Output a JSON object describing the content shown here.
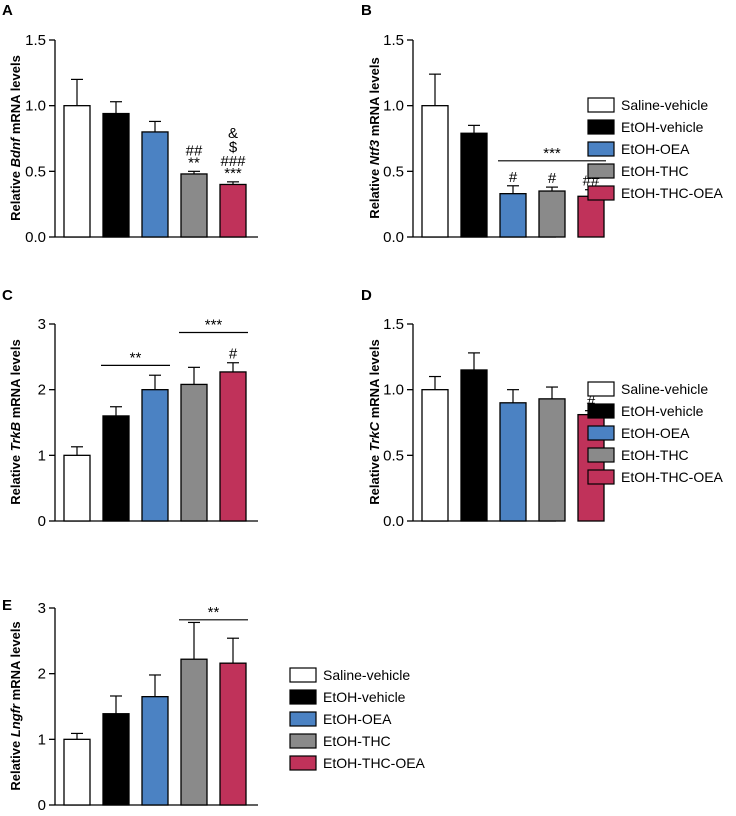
{
  "colors": {
    "Saline-vehicle": "#ffffff",
    "EtOH-vehicle": "#000000",
    "EtOH-OEA": "#4b82c3",
    "EtOH-THC": "#8a8a8a",
    "EtOH-THC-OEA": "#c0325a"
  },
  "legend": [
    "Saline-vehicle",
    "EtOH-vehicle",
    "EtOH-OEA",
    "EtOH-THC",
    "EtOH-THC-OEA"
  ],
  "chart_data": [
    {
      "type": "bar",
      "panel": "A",
      "ylabel_pre": "Relative ",
      "ylabel_gene": "Bdnf",
      "ylabel_post": " mRNA levels",
      "ylim": [
        0,
        1.5
      ],
      "yticks": [
        "0.0",
        "0.5",
        "1.0",
        "1.5"
      ],
      "categories": [
        "Saline-vehicle",
        "EtOH-vehicle",
        "EtOH-OEA",
        "EtOH-THC",
        "EtOH-THC-OEA"
      ],
      "values": [
        1.0,
        0.94,
        0.8,
        0.48,
        0.4
      ],
      "errors": [
        0.2,
        0.09,
        0.08,
        0.02,
        0.02
      ],
      "annotations": [
        {
          "bar": 3,
          "lines": [
            "##",
            "**"
          ]
        },
        {
          "bar": 4,
          "lines": [
            "&",
            "$",
            "###",
            "***"
          ]
        }
      ],
      "brackets": []
    },
    {
      "type": "bar",
      "panel": "B",
      "ylabel_pre": "Relative ",
      "ylabel_gene": "Ntf3",
      "ylabel_post": " mRNA levels",
      "ylim": [
        0,
        1.5
      ],
      "yticks": [
        "0.0",
        "0.5",
        "1.0",
        "1.5"
      ],
      "categories": [
        "Saline-vehicle",
        "EtOH-vehicle",
        "EtOH-OEA",
        "EtOH-THC",
        "EtOH-THC-OEA"
      ],
      "values": [
        1.0,
        0.79,
        0.33,
        0.35,
        0.31
      ],
      "errors": [
        0.24,
        0.06,
        0.06,
        0.03,
        0.05
      ],
      "annotations": [
        {
          "bar": 2,
          "lines": [
            "#"
          ]
        },
        {
          "bar": 3,
          "lines": [
            "#"
          ]
        },
        {
          "bar": 4,
          "lines": [
            "##"
          ]
        }
      ],
      "brackets": [
        {
          "from": 2,
          "to": 4,
          "y": 0.58,
          "label": "***"
        }
      ]
    },
    {
      "type": "bar",
      "panel": "C",
      "ylabel_pre": "Relative ",
      "ylabel_gene": "TrkB",
      "ylabel_post": " mRNA levels",
      "ylim": [
        0,
        3
      ],
      "yticks": [
        "0",
        "1",
        "2",
        "3"
      ],
      "categories": [
        "Saline-vehicle",
        "EtOH-vehicle",
        "EtOH-OEA",
        "EtOH-THC",
        "EtOH-THC-OEA"
      ],
      "values": [
        1.0,
        1.6,
        2.0,
        2.08,
        2.27
      ],
      "errors": [
        0.13,
        0.14,
        0.22,
        0.26,
        0.14
      ],
      "annotations": [
        {
          "bar": 4,
          "lines": [
            "#"
          ]
        }
      ],
      "brackets": [
        {
          "from": 1,
          "to": 2,
          "y": 2.37,
          "label": "**"
        },
        {
          "from": 3,
          "to": 4,
          "y": 2.87,
          "label": "***"
        }
      ]
    },
    {
      "type": "bar",
      "panel": "D",
      "ylabel_pre": "Relative ",
      "ylabel_gene": "TrkC",
      "ylabel_post": " mRNA levels",
      "ylim": [
        0,
        1.5
      ],
      "yticks": [
        "0.0",
        "0.5",
        "1.0",
        "1.5"
      ],
      "categories": [
        "Saline-vehicle",
        "EtOH-vehicle",
        "EtOH-OEA",
        "EtOH-THC",
        "EtOH-THC-OEA"
      ],
      "values": [
        1.0,
        1.15,
        0.9,
        0.93,
        0.81
      ],
      "errors": [
        0.1,
        0.13,
        0.1,
        0.09,
        0.03
      ],
      "annotations": [
        {
          "bar": 4,
          "lines": [
            "#"
          ]
        }
      ],
      "brackets": []
    },
    {
      "type": "bar",
      "panel": "E",
      "ylabel_pre": "Relative ",
      "ylabel_gene": "Lngfr",
      "ylabel_post": " mRNA levels",
      "ylim": [
        0,
        3
      ],
      "yticks": [
        "0",
        "1",
        "2",
        "3"
      ],
      "categories": [
        "Saline-vehicle",
        "EtOH-vehicle",
        "EtOH-OEA",
        "EtOH-THC",
        "EtOH-THC-OEA"
      ],
      "values": [
        1.0,
        1.39,
        1.65,
        2.22,
        2.16
      ],
      "errors": [
        0.09,
        0.27,
        0.33,
        0.56,
        0.38
      ],
      "annotations": [],
      "brackets": [
        {
          "from": 3,
          "to": 4,
          "y": 2.82,
          "label": "**"
        }
      ]
    }
  ]
}
